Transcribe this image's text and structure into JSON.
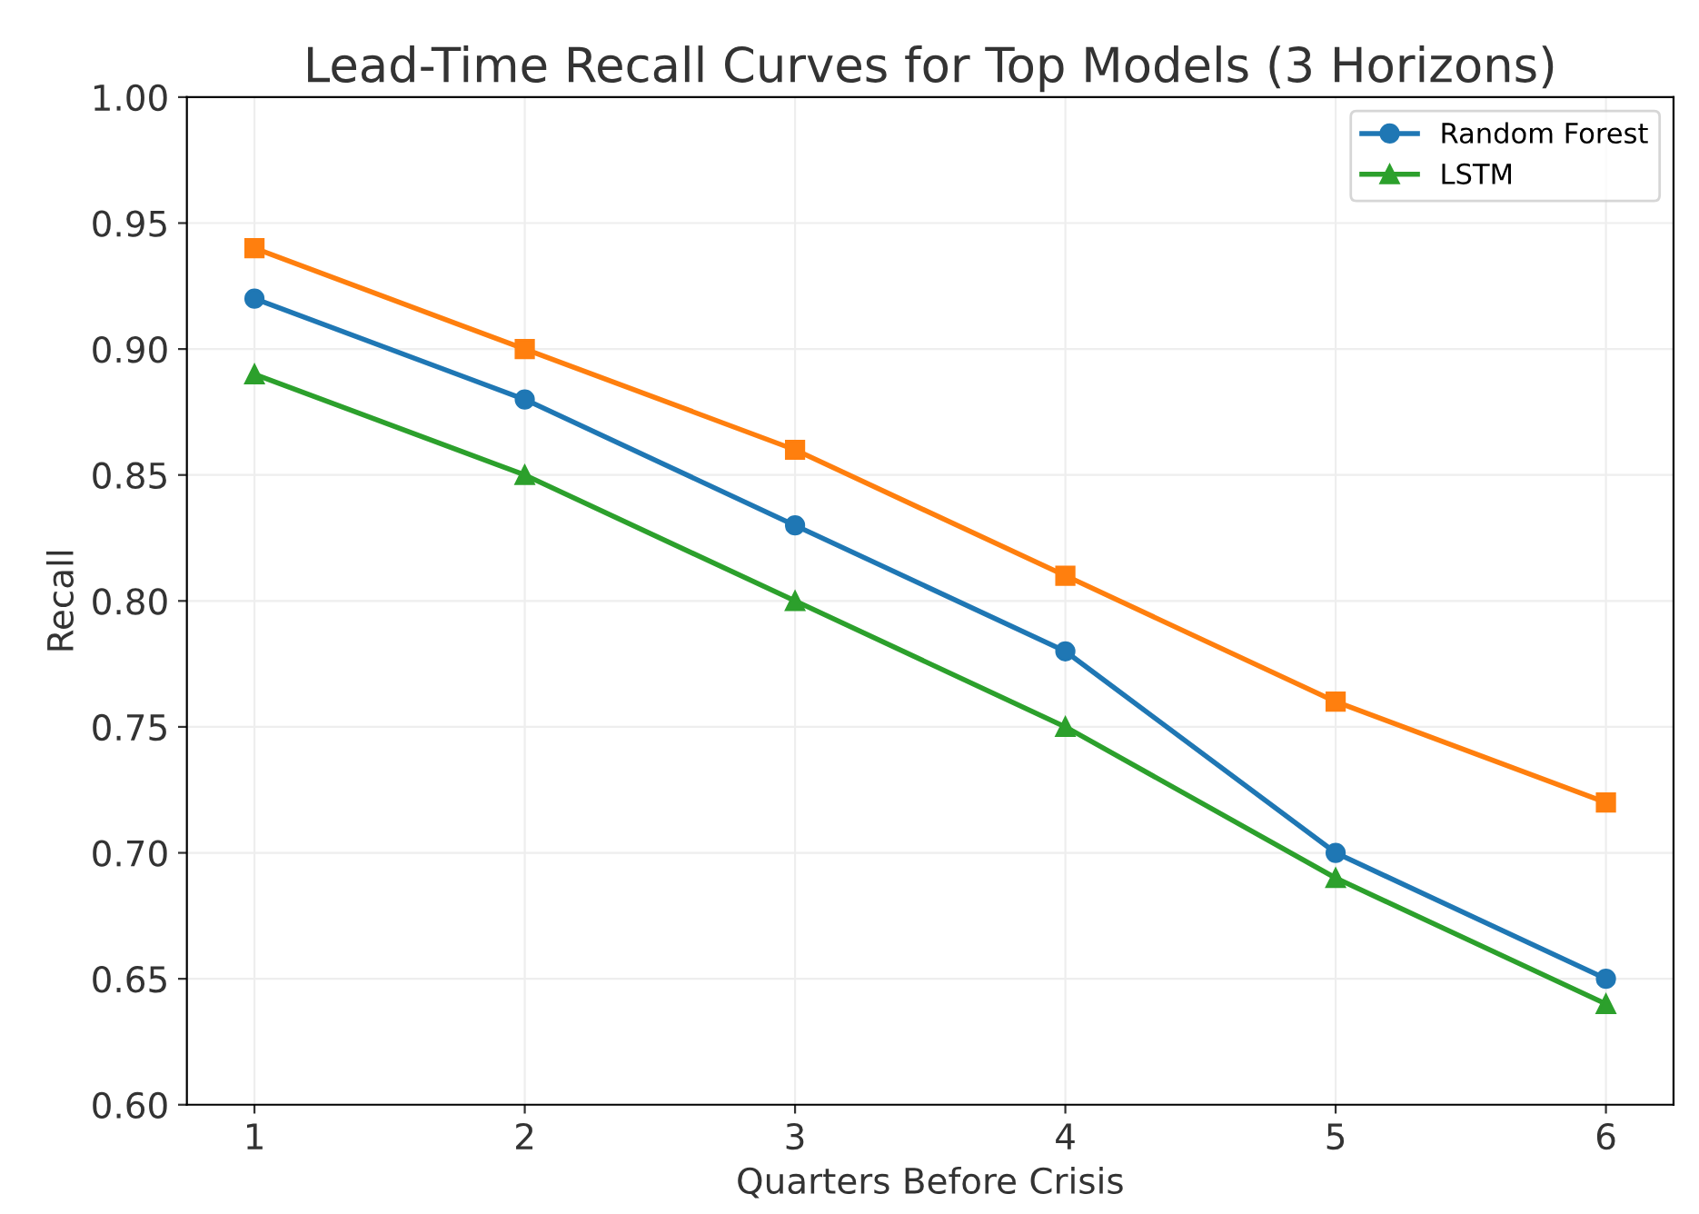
{
  "chart_data": {
    "type": "line",
    "title": "Lead-Time Recall Curves for Top Models (3 Horizons)",
    "xlabel": "Quarters Before Crisis",
    "ylabel": "Recall",
    "x": [
      1,
      2,
      3,
      4,
      5,
      6
    ],
    "series": [
      {
        "name": "Random Forest",
        "color": "#1f77b4",
        "marker": "circle",
        "values": [
          0.92,
          0.88,
          0.83,
          0.78,
          0.7,
          0.65
        ]
      },
      {
        "color": "#ff7f0e",
        "marker": "square",
        "values": [
          0.94,
          0.9,
          0.86,
          0.81,
          0.76,
          0.72
        ]
      },
      {
        "name": "LSTM",
        "color": "#2ca02c",
        "marker": "triangle",
        "values": [
          0.89,
          0.85,
          0.8,
          0.75,
          0.69,
          0.64
        ]
      }
    ],
    "xlim": [
      0.75,
      6.25
    ],
    "ylim": [
      0.6,
      1.0
    ],
    "xticks": [
      1,
      2,
      3,
      4,
      5,
      6
    ],
    "yticks": [
      {
        "value": 0.6,
        "label": "0.60"
      },
      {
        "value": 0.65,
        "label": "0.65"
      },
      {
        "value": 0.7,
        "label": "0.70"
      },
      {
        "value": 0.75,
        "label": "0.75"
      },
      {
        "value": 0.8,
        "label": "0.80"
      },
      {
        "value": 0.85,
        "label": "0.85"
      },
      {
        "value": 0.9,
        "label": "0.90"
      },
      {
        "value": 0.95,
        "label": "0.95"
      },
      {
        "value": 1.0,
        "label": "1.00"
      }
    ],
    "grid": true,
    "legend": "top right",
    "line_style": "solid"
  }
}
